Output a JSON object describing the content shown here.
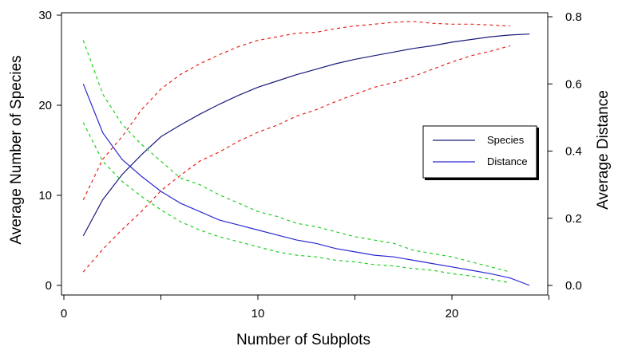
{
  "chart_data": {
    "type": "line",
    "xlabel": "Number of Subplots",
    "ylabel_left": "Average Number of Species",
    "ylabel_right": "Average Distance",
    "xlim": [
      0,
      25
    ],
    "ylim_left": [
      0,
      30
    ],
    "ylim_right": [
      0,
      0.8
    ],
    "xticks": [
      0,
      10,
      20
    ],
    "yticks_left": [
      0,
      10,
      20,
      30
    ],
    "yticks_right": [
      "0.0",
      "0.2",
      "0.4",
      "0.6",
      "0.8"
    ],
    "grid": false,
    "legend_position": "right",
    "legend": [
      "Species",
      "Distance"
    ],
    "colors": {
      "species": "#1a1a7a",
      "distance": "#2a2ad0",
      "species_ci": "#e8201a",
      "distance_ci": "#1fcf1f"
    },
    "series": [
      {
        "name": "Species",
        "axis": "left",
        "x": [
          1,
          2,
          3,
          4,
          5,
          6,
          7,
          8,
          9,
          10,
          11,
          12,
          13,
          14,
          15,
          16,
          17,
          18,
          19,
          20,
          21,
          22,
          23,
          24
        ],
        "values": [
          5.5,
          9.5,
          12.3,
          14.5,
          16.5,
          17.8,
          19.0,
          20.1,
          21.1,
          22.0,
          22.7,
          23.4,
          24.0,
          24.6,
          25.1,
          25.5,
          25.9,
          26.3,
          26.6,
          27.0,
          27.3,
          27.6,
          27.8,
          27.9
        ]
      },
      {
        "name": "Species upper bound",
        "axis": "left",
        "x": [
          1,
          2,
          3,
          4,
          5,
          6,
          7,
          8,
          9,
          10,
          11,
          12,
          13,
          14,
          15,
          16,
          17,
          18,
          19,
          20,
          21,
          22,
          23
        ],
        "values": [
          9.5,
          14.0,
          16.5,
          19.5,
          21.8,
          23.4,
          24.6,
          25.6,
          26.5,
          27.2,
          27.6,
          28.0,
          28.1,
          28.5,
          28.8,
          29.0,
          29.2,
          29.3,
          29.1,
          29.0,
          29.0,
          28.9,
          28.8
        ]
      },
      {
        "name": "Species lower bound",
        "axis": "left",
        "x": [
          1,
          2,
          3,
          4,
          5,
          6,
          7,
          8,
          9,
          10,
          11,
          12,
          13,
          14,
          15,
          16,
          17,
          18,
          19,
          20,
          21,
          22,
          23
        ],
        "values": [
          1.5,
          4.0,
          6.2,
          8.2,
          10.5,
          12.2,
          13.8,
          14.8,
          16.0,
          17.0,
          17.8,
          18.8,
          19.5,
          20.4,
          21.2,
          22.0,
          22.5,
          23.2,
          24.0,
          24.8,
          25.5,
          26.0,
          26.6
        ]
      },
      {
        "name": "Distance",
        "axis": "right",
        "x": [
          1,
          2,
          3,
          4,
          5,
          6,
          7,
          8,
          9,
          10,
          11,
          12,
          13,
          14,
          15,
          16,
          17,
          18,
          19,
          20,
          21,
          22,
          23,
          24
        ],
        "values": [
          0.6,
          0.455,
          0.375,
          0.325,
          0.28,
          0.245,
          0.22,
          0.195,
          0.18,
          0.165,
          0.15,
          0.135,
          0.125,
          0.11,
          0.1,
          0.09,
          0.085,
          0.075,
          0.065,
          0.055,
          0.045,
          0.035,
          0.022,
          0.0
        ]
      },
      {
        "name": "Distance upper bound",
        "axis": "right",
        "x": [
          1,
          2,
          3,
          4,
          5,
          6,
          7,
          8,
          9,
          10,
          11,
          12,
          13,
          14,
          15,
          16,
          17,
          18,
          19,
          20,
          21,
          22,
          23
        ],
        "values": [
          0.73,
          0.57,
          0.48,
          0.42,
          0.37,
          0.32,
          0.3,
          0.27,
          0.245,
          0.22,
          0.205,
          0.185,
          0.175,
          0.16,
          0.145,
          0.135,
          0.125,
          0.105,
          0.095,
          0.085,
          0.07,
          0.055,
          0.04
        ]
      },
      {
        "name": "Distance lower bound",
        "axis": "right",
        "x": [
          1,
          2,
          3,
          4,
          5,
          6,
          7,
          8,
          9,
          10,
          11,
          12,
          13,
          14,
          15,
          16,
          17,
          18,
          19,
          20,
          21,
          22,
          23
        ],
        "values": [
          0.485,
          0.37,
          0.31,
          0.265,
          0.225,
          0.19,
          0.165,
          0.145,
          0.13,
          0.115,
          0.1,
          0.09,
          0.085,
          0.075,
          0.07,
          0.062,
          0.058,
          0.05,
          0.045,
          0.035,
          0.028,
          0.018,
          0.008
        ]
      }
    ]
  }
}
